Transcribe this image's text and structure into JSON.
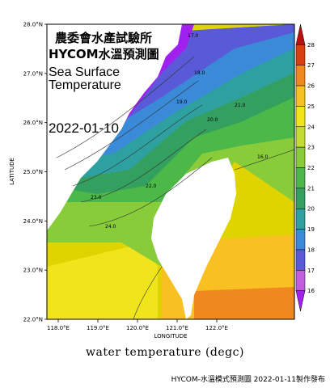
{
  "title": {
    "org": "農委會水產試驗所",
    "model": "HYCOM水溫預測圖",
    "line1": "Sea Surface",
    "line2": "Temperature",
    "date": "2022-01-10"
  },
  "axes": {
    "ylabel": "LATITUDE",
    "xlabel": "LONGITUDE",
    "lat_ticks": [
      "28.0°N",
      "27.0°N",
      "26.0°N",
      "25.0°N",
      "24.0°N",
      "23.0°N",
      "22.0°N"
    ],
    "lon_ticks": [
      "118.0°E",
      "119.0°E",
      "120.0°E",
      "121.0°E",
      "122.0°E"
    ]
  },
  "colorbar": {
    "levels": [
      "16",
      "17",
      "18",
      "19",
      "20",
      "21",
      "22",
      "23",
      "24",
      "25",
      "26",
      "27",
      "28"
    ],
    "colors": [
      "#a020f0",
      "#c45ce0",
      "#5a5ad8",
      "#3a8ad8",
      "#2fa0a0",
      "#34a060",
      "#4cb848",
      "#88cc3a",
      "#c4dc32",
      "#f0e41c",
      "#f8c020",
      "#f08820",
      "#d84010",
      "#b81010"
    ]
  },
  "contour_labels": [
    "18.0",
    "19.0",
    "20.0",
    "21.0",
    "22.0",
    "23.0",
    "24.0",
    "17.0",
    "16.0"
  ],
  "caption": "water temperature (degc)",
  "footer": "HYCOM-水溫模式預測圖 2022-01-11製作發布"
}
